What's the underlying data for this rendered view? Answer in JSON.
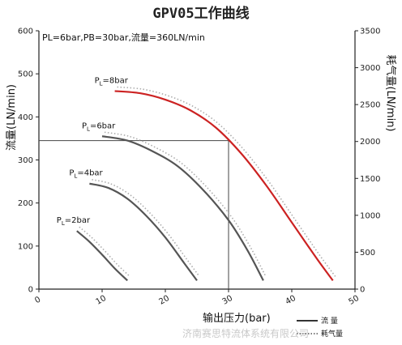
{
  "chart_data": {
    "type": "line",
    "title": "GPV05工作曲线",
    "condition": "PL=6bar,PB=30bar,流量=360LN/min",
    "xlabel": "输出压力(bar)",
    "ylabel_left": "流量(LN/min)",
    "ylabel_right": "耗气量(LN/min)",
    "xlim": [
      0,
      50
    ],
    "ylim_left": [
      0,
      600
    ],
    "ylim_right": [
      0,
      3500
    ],
    "x_ticks": [
      0,
      10,
      20,
      30,
      40,
      50
    ],
    "y_left_ticks": [
      0,
      100,
      200,
      300,
      400,
      500,
      600
    ],
    "y_right_ticks": [
      0,
      500,
      1000,
      1500,
      2000,
      2500,
      3000,
      3500
    ],
    "grid": false,
    "operating_point": {
      "x": 30,
      "y": 345
    },
    "series": [
      {
        "name": "PL=2bar",
        "label_main": "P",
        "label_sub": "L",
        "label_rest": "=2bar",
        "x": [
          6,
          8,
          10,
          12,
          14
        ],
        "y": [
          135,
          110,
          80,
          48,
          20
        ]
      },
      {
        "name": "PL=4bar",
        "label_main": "P",
        "label_sub": "L",
        "label_rest": "=4bar",
        "x": [
          8,
          11,
          14,
          17,
          20,
          23,
          25
        ],
        "y": [
          245,
          235,
          210,
          170,
          120,
          60,
          20
        ]
      },
      {
        "name": "PL=6bar",
        "label_main": "P",
        "label_sub": "L",
        "label_rest": "=6bar",
        "x": [
          10,
          14,
          18,
          22,
          26,
          30,
          33,
          35.5
        ],
        "y": [
          355,
          345,
          320,
          285,
          230,
          160,
          90,
          20
        ]
      },
      {
        "name": "PL=8bar",
        "label_main": "P",
        "label_sub": "L",
        "label_rest": "=8bar",
        "x": [
          12,
          16,
          20,
          24,
          28,
          32,
          36,
          40,
          44,
          46.5
        ],
        "y": [
          460,
          455,
          440,
          415,
          375,
          315,
          240,
          155,
          70,
          20
        ],
        "color": "#cc2222"
      }
    ],
    "legend": {
      "flow": "流 量",
      "consumption": "耗气量"
    }
  },
  "watermark": "济南赛思特流体系统有限公司"
}
